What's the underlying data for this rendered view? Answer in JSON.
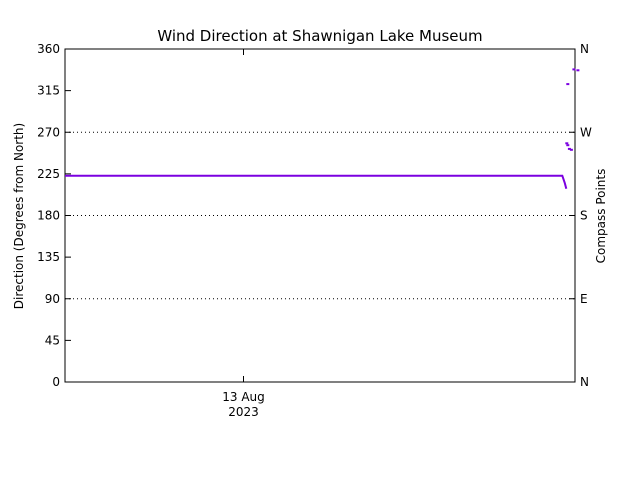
{
  "chart_data": {
    "type": "line",
    "title": "Wind Direction at Shawnigan Lake Museum",
    "ylabel": "Direction (Degrees from North)",
    "y2label": "Compass Points",
    "ylim": [
      0,
      360
    ],
    "y_ticks": [
      0,
      45,
      90,
      135,
      180,
      225,
      270,
      315,
      360
    ],
    "y2_ticks": [
      {
        "value": 0,
        "label": "N"
      },
      {
        "value": 90,
        "label": "E"
      },
      {
        "value": 180,
        "label": "S"
      },
      {
        "value": 270,
        "label": "W"
      },
      {
        "value": 360,
        "label": "N"
      }
    ],
    "x_major_tick": {
      "label": "13 Aug",
      "sublabel": "2023",
      "t": 0.35
    },
    "grid": "dotted horizontal at 90, 180, 270",
    "series": [
      {
        "color": "#7b00e0",
        "points": [
          {
            "t": 0.0,
            "value": 223
          },
          {
            "t": 0.02,
            "value": 223
          },
          {
            "t": 0.5,
            "value": 223
          },
          {
            "t": 0.99,
            "value": 223
          },
          {
            "t": 0.995,
            "value": 215
          },
          {
            "t": 0.998,
            "value": 209
          }
        ],
        "scatter": [
          {
            "t": 0.998,
            "value": 258
          },
          {
            "t": 1.0,
            "value": 256
          },
          {
            "t": 1.003,
            "value": 252
          },
          {
            "t": 1.007,
            "value": 251
          },
          {
            "t": 1.012,
            "value": 338
          },
          {
            "t": 1.02,
            "value": 337
          },
          {
            "t": 1.0,
            "value": 322
          }
        ]
      }
    ]
  }
}
